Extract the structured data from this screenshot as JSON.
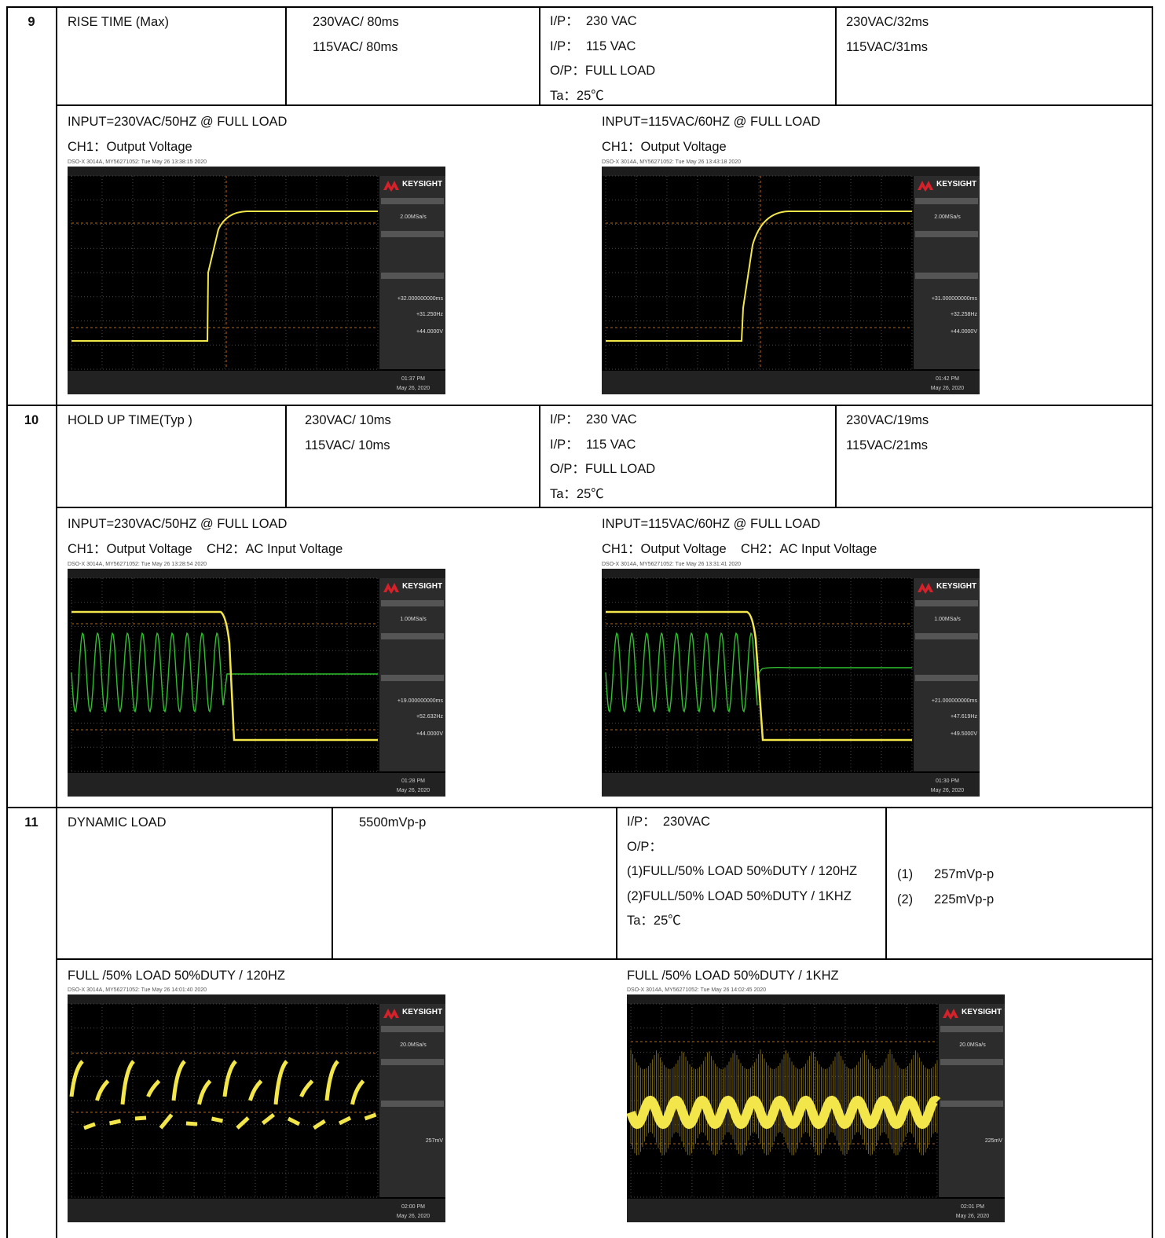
{
  "rows": [
    {
      "no": "9",
      "item": "RISE TIME (Max)",
      "spec": [
        "230VAC/ 80ms",
        "115VAC/ 80ms"
      ],
      "conditions": [
        "I/P：  230 VAC",
        "I/P：  115 VAC",
        "O/P：FULL LOAD",
        "Ta：25℃"
      ],
      "results": [
        "230VAC/32ms",
        "115VAC/31ms"
      ],
      "captures": [
        {
          "title": "INPUT=230VAC/50HZ @ FULL LOAD",
          "channels": "CH1：Output Voltage",
          "scope": {
            "header": "DSO-X 3014A, MY56271052: Tue May 26 13:38:15 2020",
            "brand": "KEYSIGHT",
            "rate": "2.00MSa/s",
            "readouts": [
              "+32.000000000ms",
              "+31.250Hz",
              "+44.0000V"
            ],
            "time": "01:37 PM",
            "date": "May 26, 2020"
          }
        },
        {
          "title": "INPUT=115VAC/60HZ @ FULL LOAD",
          "channels": "CH1：Output Voltage",
          "scope": {
            "header": "DSO-X 3014A, MY56271052: Tue May 26 13:43:18 2020",
            "brand": "KEYSIGHT",
            "rate": "2.00MSa/s",
            "readouts": [
              "+31.000000000ms",
              "+32.258Hz",
              "+44.0000V"
            ],
            "time": "01:42 PM",
            "date": "May 26, 2020"
          }
        }
      ]
    },
    {
      "no": "10",
      "item": "HOLD UP TIME(Typ )",
      "spec": [
        "230VAC/ 10ms",
        "115VAC/ 10ms"
      ],
      "conditions": [
        "I/P：  230 VAC",
        "I/P：  115 VAC",
        "O/P：FULL LOAD",
        "Ta：25℃"
      ],
      "results": [
        "230VAC/19ms",
        "115VAC/21ms"
      ],
      "captures": [
        {
          "title": "INPUT=230VAC/50HZ @ FULL LOAD",
          "channels": "CH1：Output Voltage    CH2：AC Input Voltage",
          "scope": {
            "header": "DSO-X 3014A, MY56271052: Tue May 26 13:28:54 2020",
            "brand": "KEYSIGHT",
            "rate": "1.00MSa/s",
            "readouts": [
              "+19.000000000ms",
              "+52.632Hz",
              "+44.0000V"
            ],
            "time": "01:28 PM",
            "date": "May 26, 2020"
          }
        },
        {
          "title": "INPUT=115VAC/60HZ @ FULL LOAD",
          "channels": "CH1：Output Voltage    CH2：AC Input Voltage",
          "scope": {
            "header": "DSO-X 3014A, MY56271052: Tue May 26 13:31:41 2020",
            "brand": "KEYSIGHT",
            "rate": "1.00MSa/s",
            "readouts": [
              "+21.000000000ms",
              "+47.619Hz",
              "+49.5000V"
            ],
            "time": "01:30 PM",
            "date": "May 26, 2020"
          }
        }
      ]
    },
    {
      "no": "11",
      "item": "DYNAMIC LOAD",
      "spec": [
        "5500mVp-p"
      ],
      "conditions": [
        "I/P：  230VAC",
        "O/P：",
        "(1)FULL/50% LOAD 50%DUTY / 120HZ",
        "(2)FULL/50% LOAD 50%DUTY / 1KHZ",
        "Ta：25℃"
      ],
      "results": [
        {
          "n": "(1)",
          "v": "257mVp-p"
        },
        {
          "n": "(2)",
          "v": "225mVp-p"
        }
      ],
      "captures": [
        {
          "title": "FULL /50% LOAD 50%DUTY / 120HZ",
          "scope": {
            "header": "DSO-X 3014A, MY56271052: Tue May 26 14:01:40 2020",
            "brand": "KEYSIGHT",
            "rate": "20.0MSa/s",
            "readouts": [
              "257mV"
            ],
            "time": "02:00 PM",
            "date": "May 26, 2020"
          }
        },
        {
          "title": "FULL /50% LOAD 50%DUTY / 1KHZ",
          "scope": {
            "header": "DSO-X 3014A, MY56271052: Tue May 26 14:02:45 2020",
            "brand": "KEYSIGHT",
            "rate": "20.0MSa/s",
            "readouts": [
              "225mV"
            ],
            "time": "02:01 PM",
            "date": "May 26, 2020"
          }
        }
      ]
    }
  ]
}
